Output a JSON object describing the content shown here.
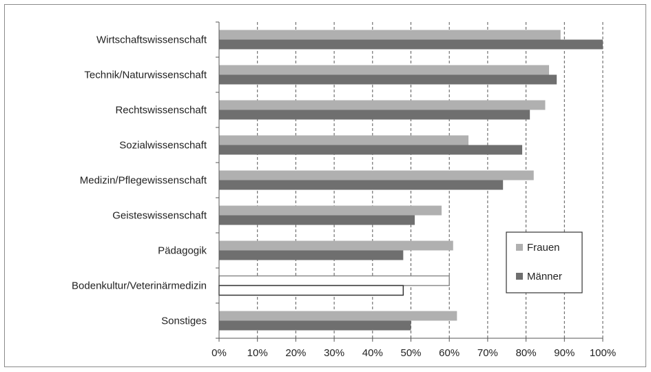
{
  "chart_data": {
    "type": "bar",
    "orientation": "horizontal",
    "categories": [
      "Wirtschaftswissenschaft",
      "Technik/Naturwissenschaft",
      "Rechtswissenschaft",
      "Sozialwissenschaft",
      "Medizin/Pflegewissenschaft",
      "Geisteswissenschaft",
      "Pädagogik",
      "Bodenkultur/Veterinärmedizin",
      "Sonstiges"
    ],
    "series": [
      {
        "name": "Frauen",
        "color": "#b0b0b0",
        "values": [
          89,
          86,
          85,
          65,
          82,
          58,
          61,
          60,
          62
        ]
      },
      {
        "name": "Männer",
        "color": "#6f6f6f",
        "values": [
          100,
          88,
          81,
          79,
          74,
          51,
          48,
          48,
          50
        ]
      }
    ],
    "hollow_category": "Bodenkultur/Veterinärmedizin",
    "x_ticks": [
      "0%",
      "10%",
      "20%",
      "30%",
      "40%",
      "50%",
      "60%",
      "70%",
      "80%",
      "90%",
      "100%"
    ],
    "xlim": [
      0,
      100
    ],
    "grid": "vertical dashed",
    "legend": {
      "position": "right",
      "entries": [
        "Frauen",
        "Männer"
      ]
    },
    "title": "",
    "xlabel": "",
    "ylabel": ""
  }
}
